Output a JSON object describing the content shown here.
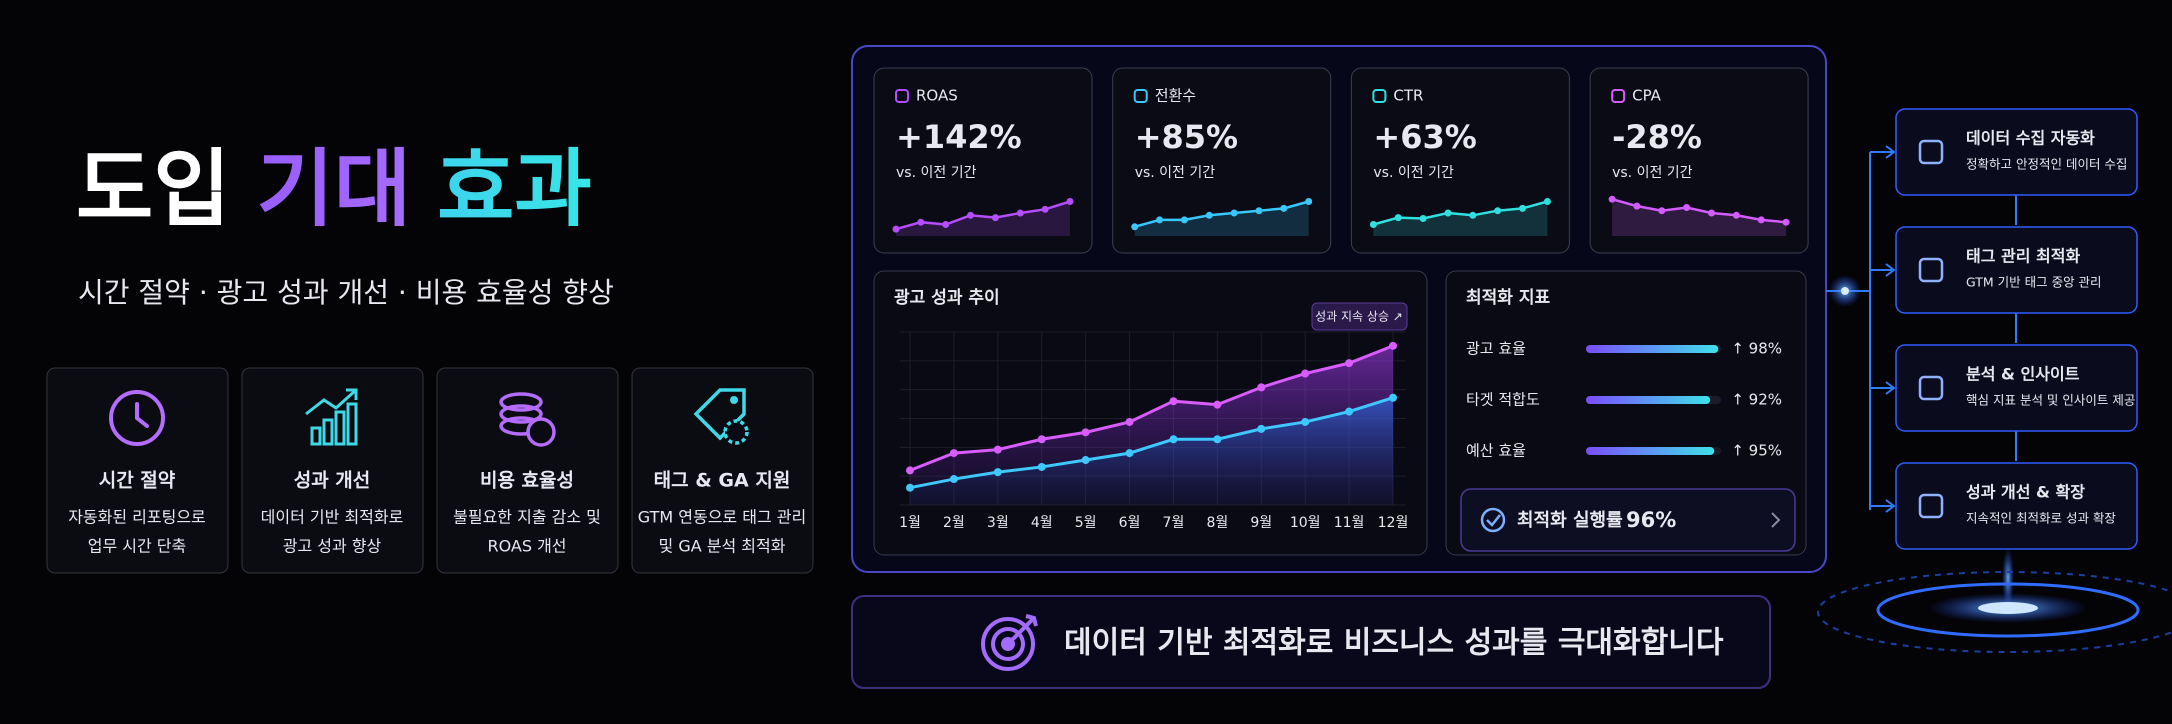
{
  "header": {
    "title_parts": [
      "도입",
      "기대",
      "효과"
    ],
    "subtitle": "시간 절약 · 광고 성과 개선 · 비용 효율성 향상"
  },
  "features": [
    {
      "title": "시간 절약",
      "desc": [
        "자동화된 리포팅으로",
        "업무 시간 단축"
      ],
      "color": "#b46cff"
    },
    {
      "title": "성과 개선",
      "desc": [
        "데이터 기반 최적화로",
        "광고 성과 향상"
      ],
      "color": "#3fd8e6"
    },
    {
      "title": "비용 효율성",
      "desc": [
        "불필요한 지출 감소 및",
        "ROAS 개선"
      ],
      "color": "#b46cff"
    },
    {
      "title": "태그 & GA 지원",
      "desc": [
        "GTM 연동으로 태그 관리",
        "및 GA 분석 최적화"
      ],
      "color": "#3fd8e6"
    }
  ],
  "kpis": [
    {
      "label": "ROAS",
      "value": "+142%",
      "note": "vs. 이전 기간",
      "spark": {
        "values": [
          15,
          30,
          25,
          45,
          40,
          50,
          58,
          75
        ],
        "ylim": [
          0,
          100
        ],
        "color": "#b34dff"
      }
    },
    {
      "label": "전환수",
      "value": "+85%",
      "note": "vs. 이전 기간",
      "spark": {
        "values": [
          20,
          35,
          35,
          45,
          50,
          55,
          60,
          75
        ],
        "ylim": [
          0,
          100
        ],
        "color": "#38c8ff"
      }
    },
    {
      "label": "CTR",
      "value": "+63%",
      "note": "vs. 이전 기간",
      "spark": {
        "values": [
          25,
          40,
          38,
          50,
          45,
          55,
          60,
          75
        ],
        "ylim": [
          0,
          100
        ],
        "color": "#30e0e0"
      }
    },
    {
      "label": "CPA",
      "value": "-28%",
      "note": "vs. 이전 기간",
      "spark": {
        "values": [
          80,
          65,
          55,
          62,
          50,
          45,
          35,
          30
        ],
        "ylim": [
          0,
          100
        ],
        "color": "#d25cff"
      }
    }
  ],
  "chart_data": {
    "type": "line",
    "title": "광고 성과 추이",
    "badge": "성과 지속 상승 ↗",
    "categories": [
      "1월",
      "2월",
      "3월",
      "4월",
      "5월",
      "6월",
      "7월",
      "8월",
      "9월",
      "10월",
      "11월",
      "12월"
    ],
    "series": [
      {
        "color": "#d85cff",
        "values": [
          20,
          30,
          32,
          38,
          42,
          48,
          60,
          58,
          68,
          76,
          82,
          92
        ]
      },
      {
        "color": "#3ec8ff",
        "values": [
          10,
          15,
          19,
          22,
          26,
          30,
          38,
          38,
          44,
          48,
          54,
          62
        ]
      }
    ],
    "ylim": [
      0,
      100
    ],
    "grid": true
  },
  "metrics": {
    "title": "최적화 지표",
    "xlim": [
      0,
      100
    ],
    "rows": [
      {
        "label": "광고 효율",
        "value": 98,
        "value_label": "↑ 98%"
      },
      {
        "label": "타겟 적합도",
        "value": 92,
        "value_label": "↑ 92%"
      },
      {
        "label": "예산 효율",
        "value": 95,
        "value_label": "↑ 95%"
      }
    ],
    "progress": {
      "label": "최적화 실행률",
      "value": "96%"
    }
  },
  "banner": {
    "text": "데이터 기반 최적화로 비즈니스 성과를 극대화합니다"
  },
  "flow": [
    {
      "title": "데이터 수집 자동화",
      "desc": "정확하고 안정적인 데이터 수집"
    },
    {
      "title": "태그 관리 최적화",
      "desc": "GTM 기반 태그 중앙 관리"
    },
    {
      "title": "분석 & 인사이트",
      "desc": "핵심 지표 분석 및 인사이트 제공"
    },
    {
      "title": "성과 개선 & 확장",
      "desc": "지속적인 최적화로 성과 확장"
    }
  ]
}
